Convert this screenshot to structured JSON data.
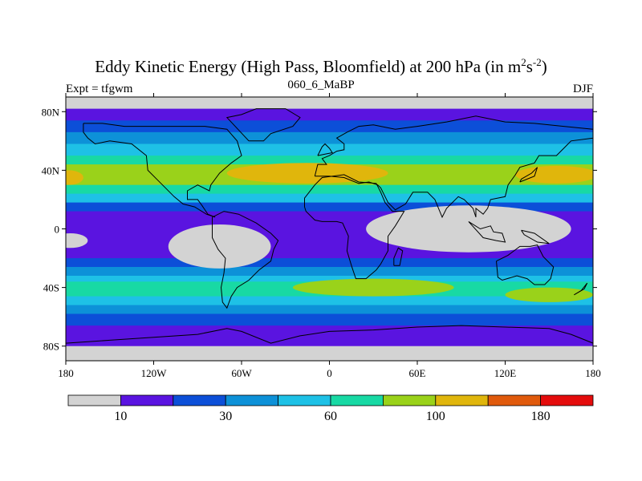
{
  "title": {
    "main": "Eddy Kinetic Energy (High Pass, Bloomfield) at 200 hPa (in m",
    "sup1": "2",
    "mid": "s",
    "sup2": "-2",
    "close": ")"
  },
  "subtitle": "060_6_MaBP",
  "left_label": "Expt = tfgwm",
  "right_label": "DJF",
  "map": {
    "lon_range": [
      -180,
      180
    ],
    "lat_range": [
      -90,
      90
    ],
    "lon_ticks": [
      {
        "value": -180,
        "label": "180"
      },
      {
        "value": -120,
        "label": "120W"
      },
      {
        "value": -60,
        "label": "60W"
      },
      {
        "value": 0,
        "label": "0"
      },
      {
        "value": 60,
        "label": "60E"
      },
      {
        "value": 120,
        "label": "120E"
      },
      {
        "value": 180,
        "label": "180"
      }
    ],
    "lat_ticks": [
      {
        "value": 80,
        "label": "80N"
      },
      {
        "value": 40,
        "label": "40N"
      },
      {
        "value": 0,
        "label": "0"
      },
      {
        "value": -40,
        "label": "40S"
      },
      {
        "value": -80,
        "label": "80S"
      }
    ],
    "zonal_bands": [
      {
        "lat_top": 90,
        "lat_bottom": 82,
        "level": 0
      },
      {
        "lat_top": 82,
        "lat_bottom": 74,
        "level": 1
      },
      {
        "lat_top": 74,
        "lat_bottom": 66,
        "level": 2
      },
      {
        "lat_top": 66,
        "lat_bottom": 58,
        "level": 3
      },
      {
        "lat_top": 58,
        "lat_bottom": 50,
        "level": 4
      },
      {
        "lat_top": 50,
        "lat_bottom": 44,
        "level": 5
      },
      {
        "lat_top": 44,
        "lat_bottom": 30,
        "level": 6
      },
      {
        "lat_top": 30,
        "lat_bottom": 24,
        "level": 5
      },
      {
        "lat_top": 24,
        "lat_bottom": 18,
        "level": 4
      },
      {
        "lat_top": 18,
        "lat_bottom": 12,
        "level": 2
      },
      {
        "lat_top": 12,
        "lat_bottom": -20,
        "level": 1
      },
      {
        "lat_top": -20,
        "lat_bottom": -26,
        "level": 2
      },
      {
        "lat_top": -26,
        "lat_bottom": -32,
        "level": 3
      },
      {
        "lat_top": -32,
        "lat_bottom": -36,
        "level": 4
      },
      {
        "lat_top": -36,
        "lat_bottom": -46,
        "level": 5
      },
      {
        "lat_top": -46,
        "lat_bottom": -52,
        "level": 4
      },
      {
        "lat_top": -52,
        "lat_bottom": -58,
        "level": 3
      },
      {
        "lat_top": -58,
        "lat_bottom": -66,
        "level": 2
      },
      {
        "lat_top": -66,
        "lat_bottom": -80,
        "level": 1
      },
      {
        "lat_top": -80,
        "lat_bottom": -90,
        "level": 0
      }
    ],
    "regional_patches": [
      {
        "name": "jet-core-atlantic",
        "lon": -15,
        "lat": 38,
        "rx": 55,
        "ry": 7,
        "level": 7
      },
      {
        "name": "jet-core-pacific",
        "lon": 155,
        "lat": 37,
        "rx": 28,
        "ry": 6,
        "level": 7
      },
      {
        "name": "jet-core-dateline",
        "lon": -178,
        "lat": 35,
        "rx": 10,
        "ry": 5,
        "level": 7
      },
      {
        "name": "calm-pacific-east",
        "lon": -75,
        "lat": -12,
        "rx": 35,
        "ry": 15,
        "level": 0
      },
      {
        "name": "calm-pacific-west",
        "lon": -177,
        "lat": -8,
        "rx": 12,
        "ry": 5,
        "level": 0
      },
      {
        "name": "calm-indian-pacific",
        "lon": 95,
        "lat": 0,
        "rx": 70,
        "ry": 16,
        "level": 0
      },
      {
        "name": "southern-jet-atlantic",
        "lon": 30,
        "lat": -40,
        "rx": 55,
        "ry": 6,
        "level": 6
      },
      {
        "name": "southern-jet-pacific",
        "lon": 150,
        "lat": -45,
        "rx": 30,
        "ry": 5,
        "level": 6
      }
    ],
    "coastlines": [
      [
        [
          -168,
          72
        ],
        [
          -155,
          72
        ],
        [
          -140,
          70
        ],
        [
          -120,
          70
        ],
        [
          -100,
          70
        ],
        [
          -85,
          70
        ],
        [
          -70,
          68
        ],
        [
          -63,
          60
        ],
        [
          -60,
          50
        ],
        [
          -67,
          45
        ],
        [
          -75,
          38
        ],
        [
          -81,
          30
        ],
        [
          -82,
          26
        ],
        [
          -90,
          30
        ],
        [
          -97,
          26
        ],
        [
          -97,
          20
        ],
        [
          -90,
          20
        ],
        [
          -87,
          16
        ],
        [
          -83,
          10
        ],
        [
          -78,
          8
        ],
        [
          -84,
          10
        ],
        [
          -92,
          15
        ],
        [
          -100,
          17
        ],
        [
          -106,
          22
        ],
        [
          -112,
          28
        ],
        [
          -117,
          33
        ],
        [
          -124,
          40
        ],
        [
          -125,
          50
        ],
        [
          -135,
          58
        ],
        [
          -150,
          60
        ],
        [
          -160,
          58
        ],
        [
          -165,
          62
        ],
        [
          -168,
          66
        ],
        [
          -168,
          72
        ]
      ],
      [
        [
          -80,
          8
        ],
        [
          -72,
          12
        ],
        [
          -62,
          10
        ],
        [
          -50,
          4
        ],
        [
          -40,
          -3
        ],
        [
          -35,
          -8
        ],
        [
          -38,
          -14
        ],
        [
          -40,
          -22
        ],
        [
          -48,
          -28
        ],
        [
          -55,
          -35
        ],
        [
          -63,
          -40
        ],
        [
          -67,
          -46
        ],
        [
          -70,
          -54
        ],
        [
          -73,
          -50
        ],
        [
          -74,
          -40
        ],
        [
          -72,
          -30
        ],
        [
          -71,
          -20
        ],
        [
          -76,
          -14
        ],
        [
          -80,
          -6
        ],
        [
          -80,
          2
        ],
        [
          -80,
          8
        ]
      ],
      [
        [
          -10,
          36
        ],
        [
          -8,
          44
        ],
        [
          -2,
          44
        ],
        [
          -5,
          48
        ],
        [
          0,
          50
        ],
        [
          5,
          53
        ],
        [
          10,
          54
        ],
        [
          10,
          58
        ],
        [
          5,
          62
        ],
        [
          12,
          66
        ],
        [
          20,
          70
        ],
        [
          30,
          71
        ],
        [
          45,
          68
        ],
        [
          60,
          70
        ],
        [
          80,
          73
        ],
        [
          100,
          77
        ],
        [
          120,
          73
        ],
        [
          140,
          72
        ],
        [
          160,
          70
        ],
        [
          180,
          68
        ],
        [
          180,
          62
        ],
        [
          165,
          60
        ],
        [
          160,
          55
        ],
        [
          155,
          50
        ],
        [
          143,
          50
        ],
        [
          140,
          45
        ],
        [
          130,
          42
        ],
        [
          127,
          37
        ],
        [
          122,
          30
        ],
        [
          120,
          22
        ],
        [
          110,
          20
        ],
        [
          108,
          14
        ],
        [
          105,
          10
        ],
        [
          100,
          14
        ],
        [
          100,
          8
        ],
        [
          98,
          14
        ],
        [
          92,
          20
        ],
        [
          88,
          22
        ],
        [
          80,
          14
        ],
        [
          77,
          8
        ],
        [
          72,
          20
        ],
        [
          67,
          25
        ],
        [
          57,
          25
        ],
        [
          52,
          17
        ],
        [
          45,
          13
        ],
        [
          40,
          18
        ],
        [
          35,
          28
        ],
        [
          33,
          30
        ],
        [
          27,
          32
        ],
        [
          20,
          31
        ],
        [
          10,
          35
        ],
        [
          0,
          36
        ],
        [
          -10,
          36
        ]
      ],
      [
        [
          -17,
          15
        ],
        [
          -17,
          21
        ],
        [
          -10,
          30
        ],
        [
          -5,
          35
        ],
        [
          10,
          37
        ],
        [
          20,
          32
        ],
        [
          32,
          31
        ],
        [
          35,
          25
        ],
        [
          38,
          18
        ],
        [
          43,
          12
        ],
        [
          51,
          12
        ],
        [
          45,
          2
        ],
        [
          40,
          -5
        ],
        [
          40,
          -15
        ],
        [
          35,
          -24
        ],
        [
          32,
          -28
        ],
        [
          25,
          -34
        ],
        [
          18,
          -34
        ],
        [
          15,
          -25
        ],
        [
          12,
          -15
        ],
        [
          13,
          -5
        ],
        [
          9,
          4
        ],
        [
          5,
          5
        ],
        [
          -5,
          5
        ],
        [
          -10,
          6
        ],
        [
          -16,
          12
        ],
        [
          -17,
          15
        ]
      ],
      [
        [
          114,
          -22
        ],
        [
          122,
          -18
        ],
        [
          130,
          -12
        ],
        [
          137,
          -12
        ],
        [
          142,
          -11
        ],
        [
          146,
          -19
        ],
        [
          153,
          -26
        ],
        [
          151,
          -34
        ],
        [
          147,
          -38
        ],
        [
          140,
          -38
        ],
        [
          135,
          -34
        ],
        [
          128,
          -32
        ],
        [
          118,
          -35
        ],
        [
          115,
          -33
        ],
        [
          114,
          -22
        ]
      ],
      [
        [
          -55,
          60
        ],
        [
          -45,
          60
        ],
        [
          -40,
          65
        ],
        [
          -25,
          70
        ],
        [
          -20,
          76
        ],
        [
          -30,
          82
        ],
        [
          -50,
          82
        ],
        [
          -60,
          78
        ],
        [
          -70,
          76
        ],
        [
          -55,
          60
        ]
      ],
      [
        [
          -180,
          -78
        ],
        [
          -150,
          -76
        ],
        [
          -120,
          -74
        ],
        [
          -90,
          -72
        ],
        [
          -70,
          -68
        ],
        [
          -60,
          -70
        ],
        [
          -40,
          -78
        ],
        [
          -20,
          -73
        ],
        [
          0,
          -70
        ],
        [
          30,
          -69
        ],
        [
          60,
          -67
        ],
        [
          90,
          -66
        ],
        [
          120,
          -67
        ],
        [
          150,
          -68
        ],
        [
          165,
          -72
        ],
        [
          180,
          -78
        ]
      ],
      [
        [
          44,
          -25
        ],
        [
          48,
          -25
        ],
        [
          50,
          -15
        ],
        [
          47,
          -13
        ],
        [
          44,
          -20
        ],
        [
          44,
          -25
        ]
      ],
      [
        [
          95,
          5
        ],
        [
          105,
          -6
        ],
        [
          114,
          -8
        ],
        [
          120,
          -9
        ],
        [
          118,
          -3
        ],
        [
          112,
          -2
        ],
        [
          110,
          2
        ],
        [
          103,
          0
        ],
        [
          95,
          5
        ]
      ],
      [
        [
          131,
          -1
        ],
        [
          140,
          -3
        ],
        [
          150,
          -10
        ],
        [
          142,
          -9
        ],
        [
          133,
          -4
        ],
        [
          131,
          -1
        ]
      ],
      [
        [
          130,
          32
        ],
        [
          135,
          34
        ],
        [
          140,
          36
        ],
        [
          142,
          42
        ],
        [
          138,
          38
        ],
        [
          131,
          34
        ],
        [
          130,
          32
        ]
      ],
      [
        [
          -8,
          50
        ],
        [
          -3,
          51
        ],
        [
          2,
          52
        ],
        [
          0,
          55
        ],
        [
          -3,
          58
        ],
        [
          -5,
          56
        ],
        [
          -8,
          50
        ]
      ],
      [
        [
          167,
          -45
        ],
        [
          174,
          -41
        ],
        [
          176,
          -37
        ],
        [
          172,
          -42
        ],
        [
          167,
          -45
        ]
      ]
    ]
  },
  "colorbar": {
    "colors": [
      "#d3d3d3",
      "#5a14e0",
      "#0c4fd8",
      "#0d91d8",
      "#1ec1e6",
      "#18d9a4",
      "#9ad21a",
      "#e0b60c",
      "#e05a0c",
      "#e40c0c"
    ],
    "labels": [
      {
        "after_box": 1,
        "text": "10"
      },
      {
        "after_box": 3,
        "text": "30"
      },
      {
        "after_box": 5,
        "text": "60"
      },
      {
        "after_box": 7,
        "text": "100"
      },
      {
        "after_box": 9,
        "text": "180"
      }
    ]
  }
}
